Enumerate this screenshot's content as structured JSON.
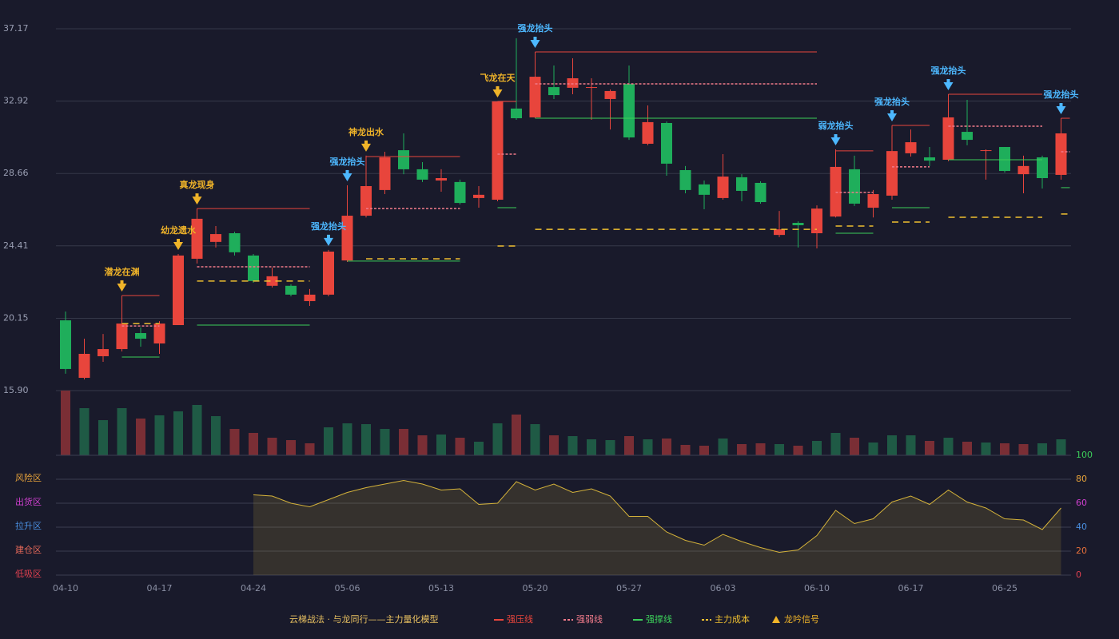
{
  "chart_data": {
    "type": "candlestick",
    "categories": [
      "04-10",
      null,
      null,
      null,
      null,
      "04-17",
      null,
      null,
      null,
      null,
      "04-24",
      null,
      null,
      null,
      null,
      "05-06",
      null,
      null,
      null,
      null,
      "05-13",
      null,
      null,
      null,
      null,
      "05-20",
      null,
      null,
      null,
      null,
      "05-27",
      null,
      null,
      null,
      null,
      "06-03",
      null,
      null,
      null,
      null,
      "06-10",
      null,
      null,
      null,
      null,
      "06-17",
      null,
      null,
      null,
      null,
      "06-25",
      null,
      null,
      null
    ],
    "open": [
      20.03,
      16.65,
      17.92,
      18.34,
      19.28,
      18.67,
      19.75,
      23.65,
      24.64,
      25.15,
      23.84,
      22.06,
      22.06,
      21.16,
      21.54,
      23.55,
      26.18,
      27.69,
      30.03,
      28.91,
      28.25,
      28.16,
      27.22,
      27.12,
      32.48,
      31.96,
      33.74,
      33.7,
      33.7,
      33.04,
      33.93,
      30.41,
      31.63,
      28.86,
      28.02,
      27.22,
      28.44,
      28.11,
      25.05,
      25.76,
      25.15,
      26.13,
      28.91,
      26.65,
      27.36,
      29.85,
      29.61,
      29.47,
      31.11,
      29.99,
      30.22,
      28.62,
      29.61,
      28.58
    ],
    "high": [
      20.55,
      18.95,
      19.23,
      19.94,
      19.61,
      19.98,
      23.93,
      26.18,
      25.57,
      25.24,
      23.93,
      23.13,
      22.15,
      21.87,
      24.17,
      27.97,
      29.71,
      29.94,
      31.02,
      29.33,
      28.91,
      28.3,
      27.92,
      32.9,
      36.61,
      34.44,
      35.01,
      35.43,
      34.26,
      33.6,
      35.01,
      32.66,
      31.72,
      29.1,
      28.25,
      29.8,
      28.62,
      28.2,
      26.46,
      25.85,
      26.79,
      30.08,
      29.71,
      27.69,
      30.08,
      31.25,
      30.22,
      32.05,
      32.99,
      30.08,
      30.22,
      29.71,
      29.71,
      31.91
    ],
    "low": [
      16.89,
      16.56,
      17.59,
      18.2,
      18.48,
      18.06,
      19.75,
      23.37,
      24.31,
      23.84,
      22.24,
      21.96,
      21.44,
      20.88,
      21.44,
      23.46,
      26.08,
      27.45,
      28.62,
      28.16,
      27.59,
      26.84,
      26.65,
      27.03,
      31.82,
      31.91,
      33.04,
      33.32,
      31.82,
      31.25,
      30.64,
      30.32,
      28.53,
      27.5,
      26.56,
      27.12,
      27.03,
      26.89,
      24.92,
      24.31,
      24.26,
      26.08,
      26.75,
      26.08,
      27.12,
      29.66,
      29.1,
      29.38,
      30.32,
      28.3,
      28.72,
      27.5,
      27.78,
      28.3
    ],
    "close": [
      17.17,
      18.06,
      18.34,
      19.84,
      18.95,
      19.84,
      23.84,
      26.0,
      25.1,
      24.03,
      22.34,
      22.62,
      21.54,
      21.54,
      24.07,
      26.18,
      27.92,
      29.61,
      28.91,
      28.3,
      28.39,
      26.93,
      27.41,
      32.9,
      31.91,
      34.35,
      33.27,
      34.26,
      33.74,
      33.51,
      30.78,
      31.68,
      29.24,
      27.69,
      27.41,
      28.48,
      27.64,
      26.98,
      25.38,
      25.62,
      26.6,
      29.05,
      26.89,
      27.45,
      29.98,
      30.5,
      29.42,
      31.96,
      30.64,
      30.03,
      28.81,
      29.1,
      28.39,
      31.02
    ],
    "up_color": "#e8453c",
    "down_color": "#1fae5b",
    "ylim": [
      15.9,
      37.17
    ],
    "yticks": [
      {
        "value": 15.9,
        "label": "15.90"
      },
      {
        "value": 20.15,
        "label": "20.15"
      },
      {
        "value": 24.41,
        "label": "24.41"
      },
      {
        "value": 28.66,
        "label": "28.66"
      },
      {
        "value": 32.92,
        "label": "32.92"
      },
      {
        "value": 37.17,
        "label": "37.17"
      }
    ],
    "volume": [
      81,
      59,
      44,
      59,
      46,
      50,
      55,
      63,
      49,
      33,
      28,
      22,
      19,
      15,
      35,
      40,
      39,
      33,
      33,
      25,
      26,
      22,
      17,
      40,
      51,
      39,
      25,
      24,
      20,
      19,
      24,
      20,
      21,
      13,
      12,
      21,
      14,
      15,
      14,
      12,
      18,
      28,
      22,
      16,
      25,
      25,
      18,
      22,
      17,
      16,
      15,
      14,
      15,
      20
    ],
    "volume_colors": [
      "#7a2e35",
      "#1f5a45",
      "#1f5a45",
      "#1f5a45",
      "#7a2e35",
      "#1f5a45",
      "#1f5a45",
      "#1f5a45",
      "#1f5a45",
      "#7a2e35",
      "#7a2e35",
      "#7a2e35",
      "#7a2e35",
      "#7a2e35",
      "#1f5a45",
      "#1f5a45",
      "#1f5a45",
      "#1f5a45",
      "#7a2e35",
      "#7a2e35",
      "#1f5a45",
      "#7a2e35",
      "#1f5a45",
      "#1f5a45",
      "#7a2e35",
      "#1f5a45",
      "#7a2e35",
      "#1f5a45",
      "#1f5a45",
      "#1f5a45",
      "#7a2e35",
      "#1f5a45",
      "#7a2e35",
      "#7a2e35",
      "#7a2e35",
      "#1f5a45",
      "#7a2e35",
      "#7a2e35",
      "#1f5a45",
      "#7a2e35",
      "#1f5a45",
      "#1f5a45",
      "#7a2e35",
      "#1f5a45",
      "#1f5a45",
      "#1f5a45",
      "#7a2e35",
      "#1f5a45",
      "#7a2e35",
      "#1f5a45",
      "#7a2e35",
      "#7a2e35",
      "#1f5a45",
      "#1f5a45"
    ],
    "levels": [
      {
        "name": "强压线",
        "color": "#e8453c",
        "dash": "none",
        "segments": [
          {
            "start": 3,
            "end": 5,
            "value": 21.49
          },
          {
            "start": 7,
            "end": 13,
            "value": 26.6
          },
          {
            "start": 16,
            "end": 21,
            "value": 29.66
          },
          {
            "start": 23,
            "end": 24,
            "value": 32.9
          },
          {
            "start": 25,
            "end": 40,
            "value": 35.81
          },
          {
            "start": 41,
            "end": 43,
            "value": 29.99
          },
          {
            "start": 44,
            "end": 46,
            "value": 31.49
          },
          {
            "start": 47,
            "end": 52,
            "value": 33.32
          },
          {
            "start": 53,
            "end": 53,
            "value": 31.91
          }
        ]
      },
      {
        "name": "强弱线",
        "color": "#f07a8a",
        "dash": "3 2",
        "segments": [
          {
            "start": 3,
            "end": 5,
            "value": 19.7
          },
          {
            "start": 7,
            "end": 13,
            "value": 23.18
          },
          {
            "start": 16,
            "end": 21,
            "value": 26.6
          },
          {
            "start": 23,
            "end": 24,
            "value": 29.8
          },
          {
            "start": 25,
            "end": 40,
            "value": 33.93
          },
          {
            "start": 41,
            "end": 43,
            "value": 27.55
          },
          {
            "start": 44,
            "end": 46,
            "value": 29.05
          },
          {
            "start": 47,
            "end": 52,
            "value": 31.44
          },
          {
            "start": 53,
            "end": 53,
            "value": 29.94
          }
        ]
      },
      {
        "name": "强撑线",
        "color": "#3ccf5a",
        "dash": "none",
        "segments": [
          {
            "start": 3,
            "end": 5,
            "value": 17.87
          },
          {
            "start": 7,
            "end": 13,
            "value": 19.75
          },
          {
            "start": 15,
            "end": 21,
            "value": 23.51
          },
          {
            "start": 23,
            "end": 24,
            "value": 26.65
          },
          {
            "start": 25,
            "end": 40,
            "value": 31.91
          },
          {
            "start": 41,
            "end": 43,
            "value": 25.15
          },
          {
            "start": 44,
            "end": 46,
            "value": 26.65
          },
          {
            "start": 47,
            "end": 52,
            "value": 29.47
          },
          {
            "start": 53,
            "end": 53,
            "value": 27.83
          }
        ]
      },
      {
        "name": "主力成本",
        "color": "#f0c030",
        "dash": "8 6",
        "segments": [
          {
            "start": 3,
            "end": 5,
            "value": 19.84
          },
          {
            "start": 7,
            "end": 13,
            "value": 22.34
          },
          {
            "start": 16,
            "end": 21,
            "value": 23.65
          },
          {
            "start": 23,
            "end": 24,
            "value": 24.4
          },
          {
            "start": 25,
            "end": 40,
            "value": 25.38
          },
          {
            "start": 41,
            "end": 43,
            "value": 25.57
          },
          {
            "start": 44,
            "end": 46,
            "value": 25.81
          },
          {
            "start": 47,
            "end": 52,
            "value": 26.09
          },
          {
            "start": 53,
            "end": 53,
            "value": 26.28
          }
        ]
      }
    ],
    "signals": [
      {
        "index": 3,
        "label": "潜龙在渊",
        "color": "#f0b429"
      },
      {
        "index": 6,
        "label": "幼龙遗水",
        "color": "#f0b429"
      },
      {
        "index": 7,
        "label": "真龙现身",
        "color": "#f0b429"
      },
      {
        "index": 14,
        "label": "强龙抬头",
        "color": "#4db8ff"
      },
      {
        "index": 15,
        "label": "强龙抬头",
        "color": "#4db8ff"
      },
      {
        "index": 16,
        "label": "神龙出水",
        "color": "#f0b429"
      },
      {
        "index": 23,
        "label": "飞龙在天",
        "color": "#f0b429"
      },
      {
        "index": 25,
        "label": "强龙抬头",
        "color": "#4db8ff"
      },
      {
        "index": 41,
        "label": "弱龙抬头",
        "color": "#4db8ff"
      },
      {
        "index": 44,
        "label": "强龙抬头",
        "color": "#4db8ff"
      },
      {
        "index": 47,
        "label": "强龙抬头",
        "color": "#4db8ff"
      },
      {
        "index": 53,
        "label": "强龙抬头",
        "color": "#4db8ff"
      }
    ],
    "signal_legend": "龙吟信号",
    "legend_title": "云梯战法 · 与龙同行——主力量化模型",
    "indicator": {
      "color": "#d4b23a",
      "ylim": [
        0,
        100
      ],
      "yticks": [
        0,
        20,
        40,
        60,
        80,
        100
      ],
      "ytick_colors": [
        "#e04050",
        "#e8703a",
        "#4a90e2",
        "#d040d0",
        "#e8a33a",
        "#3ccf5a"
      ],
      "zones": [
        {
          "label": "风险区",
          "value": 80,
          "color": "#e8a33a"
        },
        {
          "label": "出货区",
          "value": 60,
          "color": "#d040d0"
        },
        {
          "label": "拉升区",
          "value": 40,
          "color": "#4a90e2"
        },
        {
          "label": "建仓区",
          "value": 20,
          "color": "#e86a5a"
        },
        {
          "label": "低吸区",
          "value": 0,
          "color": "#e04050"
        }
      ],
      "values": [
        null,
        null,
        null,
        null,
        null,
        null,
        null,
        null,
        null,
        null,
        67,
        66,
        60,
        57,
        63,
        69,
        73,
        76,
        79,
        76,
        71,
        72,
        59,
        60,
        78,
        71,
        76,
        69,
        72,
        66,
        49,
        49,
        36,
        29,
        25,
        34,
        28,
        23,
        19,
        21,
        33,
        54,
        43,
        47,
        61,
        66,
        59,
        71,
        61,
        56,
        47,
        46,
        38,
        56
      ]
    }
  }
}
